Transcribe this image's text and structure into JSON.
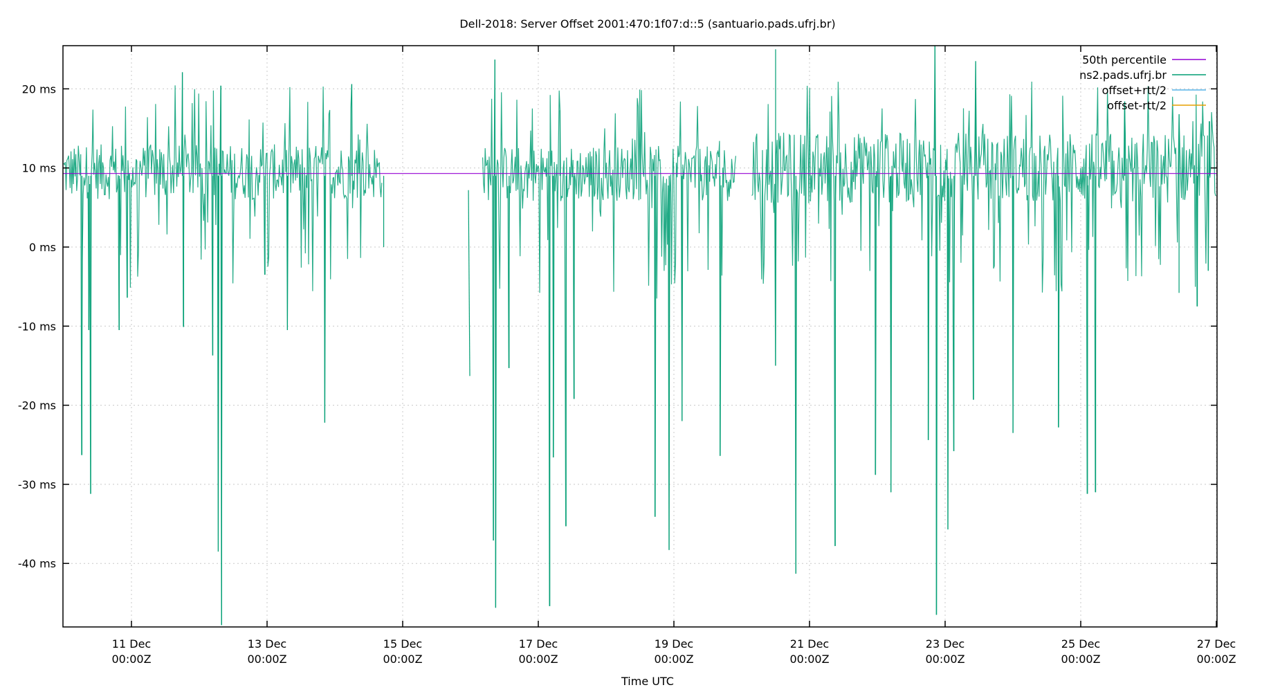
{
  "chart_data": {
    "type": "line",
    "title": "Dell-2018: Server Offset 2001:470:1f07:d::5 (santuario.pads.ufrj.br)",
    "xlabel": "Time UTC",
    "ylabel": "",
    "x_range": [
      "2018-12-09T23:45Z",
      "2018-12-27T00:00Z"
    ],
    "ylim": [
      -48.0,
      25.5
    ],
    "y_unit": "ms",
    "grid": true,
    "legend_position": "top-right-inside",
    "y_ticks": [
      {
        "value": 20,
        "label": "20 ms"
      },
      {
        "value": 10,
        "label": "10 ms"
      },
      {
        "value": 0,
        "label": "0 ms"
      },
      {
        "value": -10,
        "label": "-10 ms"
      },
      {
        "value": -20,
        "label": "-20 ms"
      },
      {
        "value": -30,
        "label": "-30 ms"
      },
      {
        "value": -40,
        "label": "-40 ms"
      }
    ],
    "x_ticks": [
      {
        "day": 11,
        "line1": "11 Dec",
        "line2": "00:00Z"
      },
      {
        "day": 13,
        "line1": "13 Dec",
        "line2": "00:00Z"
      },
      {
        "day": 15,
        "line1": "15 Dec",
        "line2": "00:00Z"
      },
      {
        "day": 17,
        "line1": "17 Dec",
        "line2": "00:00Z"
      },
      {
        "day": 19,
        "line1": "19 Dec",
        "line2": "00:00Z"
      },
      {
        "day": 21,
        "line1": "21 Dec",
        "line2": "00:00Z"
      },
      {
        "day": 23,
        "line1": "23 Dec",
        "line2": "00:00Z"
      },
      {
        "day": 25,
        "line1": "25 Dec",
        "line2": "00:00Z"
      },
      {
        "day": 27,
        "line1": "27 Dec",
        "line2": "00:00Z"
      }
    ],
    "series": [
      {
        "name": "50th percentile",
        "color": "#9400d3",
        "constant_value": 9.3
      },
      {
        "name": "ns2.pads.ufrj.br",
        "color": "#009e73",
        "description": "NTP offset samples, mostly 6-14 ms with frequent negative spikes",
        "segments": [
          {
            "start_day": 10.0,
            "end_day": 14.7,
            "baseline": 9.5,
            "spread": 3.5
          },
          {
            "start_day": 16.18,
            "end_day": 19.92,
            "baseline": 9.3,
            "spread": 3.5
          },
          {
            "start_day": 20.15,
            "end_day": 27.0,
            "baseline": 10.0,
            "spread": 4.5
          }
        ],
        "isolated_points": [
          {
            "day": 15.97,
            "value": 7.2
          },
          {
            "day": 15.99,
            "value": -16.3
          }
        ],
        "notable_spikes": [
          {
            "day": 10.27,
            "value": -26.3
          },
          {
            "day": 10.4,
            "value": -31.2
          },
          {
            "day": 10.37,
            "value": -10.5
          },
          {
            "day": 10.82,
            "value": -10.5
          },
          {
            "day": 10.94,
            "value": -6.4
          },
          {
            "day": 11.75,
            "value": 22.1
          },
          {
            "day": 11.77,
            "value": -10.1
          },
          {
            "day": 12.2,
            "value": -13.7
          },
          {
            "day": 12.28,
            "value": -38.5
          },
          {
            "day": 12.33,
            "value": -47.8
          },
          {
            "day": 12.32,
            "value": 20.4
          },
          {
            "day": 12.97,
            "value": -3.5
          },
          {
            "day": 13.3,
            "value": -10.5
          },
          {
            "day": 13.85,
            "value": -22.2
          },
          {
            "day": 14.25,
            "value": 20.6
          },
          {
            "day": 14.72,
            "value": 0.0
          },
          {
            "day": 16.36,
            "value": 23.7
          },
          {
            "day": 16.34,
            "value": -37.1
          },
          {
            "day": 16.37,
            "value": -45.6
          },
          {
            "day": 16.57,
            "value": -15.3
          },
          {
            "day": 17.17,
            "value": -45.4
          },
          {
            "day": 17.22,
            "value": -26.6
          },
          {
            "day": 17.32,
            "value": 17.3
          },
          {
            "day": 17.41,
            "value": -35.3
          },
          {
            "day": 17.53,
            "value": -19.2
          },
          {
            "day": 18.72,
            "value": -34.1
          },
          {
            "day": 18.93,
            "value": -38.3
          },
          {
            "day": 19.12,
            "value": -22.0
          },
          {
            "day": 19.68,
            "value": -26.4
          },
          {
            "day": 20.5,
            "value": 25.0
          },
          {
            "day": 20.5,
            "value": -15.0
          },
          {
            "day": 20.8,
            "value": -41.3
          },
          {
            "day": 21.38,
            "value": -37.8
          },
          {
            "day": 21.97,
            "value": -28.8
          },
          {
            "day": 22.2,
            "value": -31.0
          },
          {
            "day": 22.75,
            "value": -24.4
          },
          {
            "day": 22.85,
            "value": 25.5
          },
          {
            "day": 22.87,
            "value": -46.5
          },
          {
            "day": 23.04,
            "value": -35.7
          },
          {
            "day": 23.13,
            "value": -25.8
          },
          {
            "day": 23.45,
            "value": 23.5
          },
          {
            "day": 23.42,
            "value": -19.3
          },
          {
            "day": 24.0,
            "value": -23.5
          },
          {
            "day": 24.67,
            "value": -22.8
          },
          {
            "day": 25.1,
            "value": -31.2
          },
          {
            "day": 25.22,
            "value": -31.0
          },
          {
            "day": 25.65,
            "value": 18.4
          },
          {
            "day": 26.45,
            "value": -5.8
          },
          {
            "day": 26.45,
            "value": 16.8
          },
          {
            "day": 26.72,
            "value": -7.5
          },
          {
            "day": 26.88,
            "value": -3.0
          },
          {
            "day": 26.9,
            "value": 15.9
          }
        ]
      },
      {
        "name": "offset+rtt/2",
        "color": "#56b4e9"
      },
      {
        "name": "offset-rtt/2",
        "color": "#e69f00"
      }
    ]
  }
}
